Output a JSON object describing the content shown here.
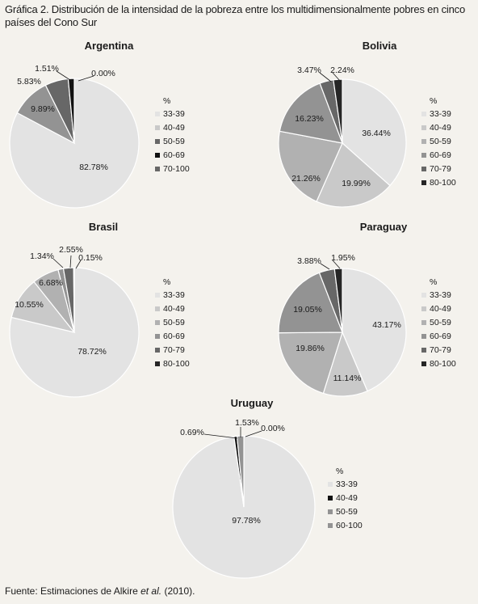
{
  "figure": {
    "title": "Gráfica 2. Distribución de la intensidad de la pobreza entre los multidimensionalmente pobres en cinco países del Cono Sur",
    "source_prefix": "Fuente: Estimaciones de Alkire ",
    "source_italic": "et al.",
    "source_suffix": " (2010)."
  },
  "colors": {
    "33-39": "#e3e3e3",
    "40-49": "#c9c9c9",
    "50-59": "#b1b1b1",
    "60-69": "#939393",
    "70-79": "#676767",
    "80-100": "#262626",
    "black": "#111111"
  },
  "chart_data": [
    {
      "type": "pie",
      "title": "Argentina",
      "legend_title": "%",
      "legend": [
        "33-39",
        "40-49",
        "50-59",
        "60-69",
        "70-100"
      ],
      "legend_colors": [
        "#e3e3e3",
        "#c9c9c9",
        "#676767",
        "#111111",
        "#676767"
      ],
      "slices": [
        {
          "label": "33-39",
          "value": 82.78,
          "display": "82.78%",
          "color": "#e3e3e3"
        },
        {
          "label": "40-49",
          "value": 9.89,
          "display": "9.89%",
          "color": "#939393"
        },
        {
          "label": "50-59",
          "value": 5.83,
          "display": "5.83%",
          "color": "#676767"
        },
        {
          "label": "60-69",
          "value": 1.51,
          "display": "1.51%",
          "color": "#111111"
        },
        {
          "label": "70-100",
          "value": 0.0,
          "display": "0.00%",
          "color": "#676767"
        }
      ]
    },
    {
      "type": "pie",
      "title": "Bolivia",
      "legend_title": "%",
      "legend": [
        "33-39",
        "40-49",
        "50-59",
        "60-69",
        "70-79",
        "80-100"
      ],
      "legend_colors": [
        "#e3e3e3",
        "#c9c9c9",
        "#b1b1b1",
        "#939393",
        "#676767",
        "#262626"
      ],
      "slices": [
        {
          "label": "33-39",
          "value": 36.44,
          "display": "36.44%",
          "color": "#e3e3e3"
        },
        {
          "label": "40-49",
          "value": 19.99,
          "display": "19.99%",
          "color": "#c9c9c9"
        },
        {
          "label": "50-59",
          "value": 21.26,
          "display": "21.26%",
          "color": "#b1b1b1"
        },
        {
          "label": "60-69",
          "value": 16.23,
          "display": "16.23%",
          "color": "#939393"
        },
        {
          "label": "70-79",
          "value": 3.47,
          "display": "3.47%",
          "color": "#676767"
        },
        {
          "label": "80-100",
          "value": 2.24,
          "display": "2.24%",
          "color": "#262626"
        }
      ]
    },
    {
      "type": "pie",
      "title": "Brasil",
      "legend_title": "%",
      "legend": [
        "33-39",
        "40-49",
        "50-59",
        "60-69",
        "70-79",
        "80-100"
      ],
      "legend_colors": [
        "#e3e3e3",
        "#c9c9c9",
        "#b1b1b1",
        "#939393",
        "#676767",
        "#262626"
      ],
      "slices": [
        {
          "label": "33-39",
          "value": 78.72,
          "display": "78.72%",
          "color": "#e3e3e3"
        },
        {
          "label": "40-49",
          "value": 10.55,
          "display": "10.55%",
          "color": "#c9c9c9"
        },
        {
          "label": "50-59",
          "value": 6.68,
          "display": "6.68%",
          "color": "#b1b1b1"
        },
        {
          "label": "60-69",
          "value": 1.34,
          "display": "1.34%",
          "color": "#939393"
        },
        {
          "label": "70-79",
          "value": 2.55,
          "display": "2.55%",
          "color": "#676767"
        },
        {
          "label": "80-100",
          "value": 0.15,
          "display": "0.15%",
          "color": "#262626"
        }
      ]
    },
    {
      "type": "pie",
      "title": "Paraguay",
      "legend_title": "%",
      "legend": [
        "33-39",
        "40-49",
        "50-59",
        "60-69",
        "70-79",
        "80-100"
      ],
      "legend_colors": [
        "#e3e3e3",
        "#c9c9c9",
        "#b1b1b1",
        "#939393",
        "#676767",
        "#262626"
      ],
      "slices": [
        {
          "label": "33-39",
          "value": 43.17,
          "display": "43.17%",
          "color": "#e3e3e3"
        },
        {
          "label": "40-49",
          "value": 11.14,
          "display": "11.14%",
          "color": "#c9c9c9"
        },
        {
          "label": "50-59",
          "value": 19.86,
          "display": "19.86%",
          "color": "#b1b1b1"
        },
        {
          "label": "60-69",
          "value": 19.05,
          "display": "19.05%",
          "color": "#939393"
        },
        {
          "label": "70-79",
          "value": 3.88,
          "display": "3.88%",
          "color": "#676767"
        },
        {
          "label": "80-100",
          "value": 1.95,
          "display": "1.95%",
          "color": "#262626"
        }
      ]
    },
    {
      "type": "pie",
      "title": "Uruguay",
      "legend_title": "%",
      "legend": [
        "33-39",
        "40-49",
        "50-59",
        "60-100"
      ],
      "legend_colors": [
        "#e3e3e3",
        "#111111",
        "#939393",
        "#939393"
      ],
      "slices": [
        {
          "label": "33-39",
          "value": 97.78,
          "display": "97.78%",
          "color": "#e3e3e3"
        },
        {
          "label": "40-49",
          "value": 0.69,
          "display": "0.69%",
          "color": "#111111"
        },
        {
          "label": "50-59",
          "value": 1.53,
          "display": "1.53%",
          "color": "#939393"
        },
        {
          "label": "60-100",
          "value": 0.0,
          "display": "0.00%",
          "color": "#939393"
        }
      ]
    }
  ]
}
